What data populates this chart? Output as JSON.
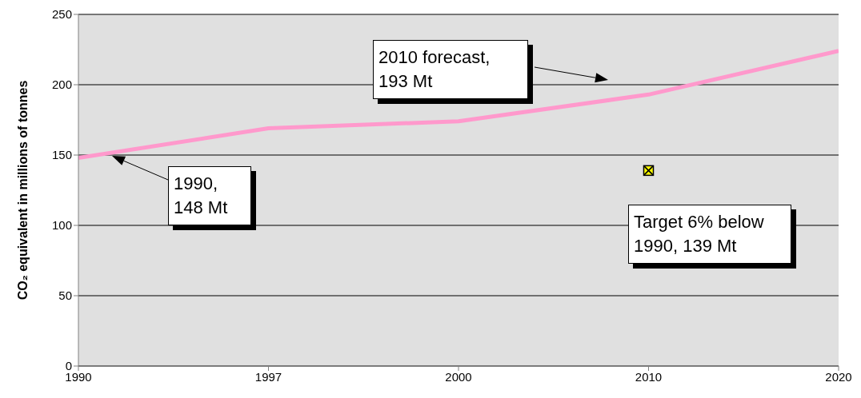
{
  "chart_data": {
    "type": "line",
    "ylabel": "CO₂ equivalent in millions of tonnes",
    "categories": [
      "1990",
      "1997",
      "2000",
      "2010",
      "2020"
    ],
    "series": [
      {
        "color": "#ff99cc",
        "values": [
          148,
          169,
          174,
          193,
          224
        ],
        "marker": "none"
      },
      {
        "type": "scatter",
        "color": "#ffff00",
        "values": [
          null,
          null,
          null,
          139,
          null
        ],
        "marker": "square"
      }
    ],
    "ylim": [
      0,
      250
    ],
    "yticks": [
      0,
      50,
      100,
      150,
      200,
      250
    ],
    "grid": "y",
    "annotations": [
      "1990, 148 Mt",
      "2010 forecast, 193 Mt",
      "Target 6% below 1990, 139 Mt"
    ]
  }
}
